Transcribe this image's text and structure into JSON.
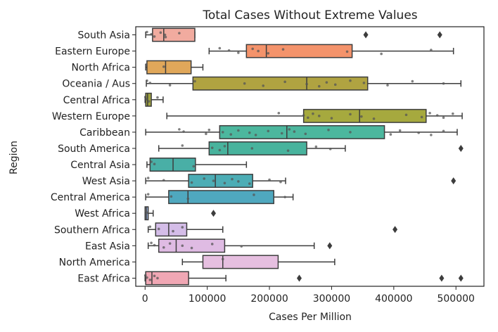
{
  "chart_data": {
    "type": "box",
    "title": "Total Cases Without Extreme Values",
    "xlabel": "Cases Per Million",
    "ylabel": "Region",
    "xlim": [
      -15000,
      545000
    ],
    "xticks": [
      0,
      100000,
      200000,
      300000,
      400000,
      500000
    ],
    "xtick_labels": [
      "0",
      "100000",
      "200000",
      "300000",
      "400000",
      "500000"
    ],
    "grid": false,
    "categories": [
      {
        "name": "South Asia",
        "color": "#f1ab9f",
        "whislo": 1000,
        "q1": 12000,
        "med": 30000,
        "q3": 80000,
        "whishi": 80000,
        "fliers": [
          355000,
          474000
        ],
        "points": [
          3000,
          10000,
          15000,
          25000,
          32000,
          33000,
          55000
        ]
      },
      {
        "name": "Eastern Europe",
        "color": "#f4936b",
        "whislo": 103000,
        "q1": 163000,
        "med": 195000,
        "q3": 333000,
        "whishi": 496000,
        "fliers": [],
        "points": [
          120000,
          135000,
          150000,
          173000,
          182000,
          198000,
          222000,
          325000,
          380000,
          460000
        ]
      },
      {
        "name": "North Africa",
        "color": "#e0a75a",
        "whislo": 1000,
        "q1": 3000,
        "med": 33000,
        "q3": 74000,
        "whishi": 93000,
        "fliers": [],
        "points": [
          2000,
          30000
        ]
      },
      {
        "name": "Oceania / Aus",
        "color": "#b0a341",
        "whislo": 2000,
        "q1": 77000,
        "med": 260000,
        "q3": 358000,
        "whishi": 508000,
        "fliers": [],
        "points": [
          3000,
          8000,
          40000,
          80000,
          160000,
          190000,
          225000,
          260000,
          280000,
          292000,
          306000,
          330000,
          352000,
          390000,
          430000,
          480000
        ]
      },
      {
        "name": "Central Africa",
        "color": "#a1a43f",
        "whislo": 0,
        "q1": 1000,
        "med": 4000,
        "q3": 10000,
        "whishi": 29000,
        "fliers": [],
        "points": [
          500,
          2000,
          6000,
          20000
        ]
      },
      {
        "name": "Western Europe",
        "color": "#a6a93e",
        "whislo": 35000,
        "q1": 255000,
        "med": 345000,
        "q3": 452000,
        "whishi": 510000,
        "fliers": [],
        "points": [
          215000,
          255000,
          262000,
          270000,
          280000,
          300000,
          330000,
          348000,
          368000,
          420000,
          445000,
          458000,
          470000,
          480000,
          495000
        ]
      },
      {
        "name": "Caribbean",
        "color": "#4cb79e",
        "whislo": 1000,
        "q1": 120000,
        "med": 228000,
        "q3": 385000,
        "whishi": 502000,
        "fliers": [],
        "points": [
          55000,
          62000,
          98000,
          103000,
          125000,
          138000,
          150000,
          168000,
          178000,
          198000,
          220000,
          232000,
          240000,
          258000,
          295000,
          330000,
          395000,
          410000,
          440000,
          460000,
          480000
        ]
      },
      {
        "name": "South America",
        "color": "#48b39d",
        "whislo": 22000,
        "q1": 103000,
        "med": 133000,
        "q3": 260000,
        "whishi": 322000,
        "fliers": [
          508000
        ],
        "points": [
          60000,
          108000,
          120000,
          128000,
          172000,
          230000,
          275000,
          298000
        ]
      },
      {
        "name": "Central Asia",
        "color": "#49afa6",
        "whislo": 3000,
        "q1": 8000,
        "med": 45000,
        "q3": 81000,
        "whishi": 163000,
        "fliers": [],
        "points": [
          10000,
          15000,
          78000
        ]
      },
      {
        "name": "West Asia",
        "color": "#4cadb5",
        "whislo": 1000,
        "q1": 70000,
        "med": 113000,
        "q3": 173000,
        "whishi": 226000,
        "fliers": [
          496000
        ],
        "points": [
          5000,
          30000,
          75000,
          95000,
          110000,
          128000,
          140000,
          150000,
          168000,
          200000,
          218000
        ]
      },
      {
        "name": "Central America",
        "color": "#4fa8bf",
        "whislo": 1000,
        "q1": 38000,
        "med": 69000,
        "q3": 207000,
        "whishi": 238000,
        "fliers": [],
        "points": [
          5000,
          42000,
          69000,
          175000,
          225000
        ]
      },
      {
        "name": "West Africa",
        "color": "#9bb4e0",
        "whislo": 0,
        "q1": 0,
        "med": 2000,
        "q3": 5000,
        "whishi": 13000,
        "fliers": [
          110000
        ],
        "points": [
          1000,
          3000
        ]
      },
      {
        "name": "Southern Africa",
        "color": "#d4bde8",
        "whislo": 5000,
        "q1": 17000,
        "med": 38000,
        "q3": 67000,
        "whishi": 125000,
        "fliers": [
          402000
        ],
        "points": [
          8000,
          22000,
          45000,
          60000
        ]
      },
      {
        "name": "East Asia",
        "color": "#dfbbe3",
        "whislo": 5000,
        "q1": 22000,
        "med": 50000,
        "q3": 128000,
        "whishi": 272000,
        "fliers": [
          297000
        ],
        "points": [
          10000,
          15000,
          30000,
          40000,
          60000,
          75000,
          108000,
          155000
        ]
      },
      {
        "name": "North America",
        "color": "#e6bfe0",
        "whislo": 60000,
        "q1": 93000,
        "med": 125000,
        "q3": 214000,
        "whishi": 305000,
        "fliers": [],
        "points": [
          125000
        ]
      },
      {
        "name": "East Africa",
        "color": "#f0a7b4",
        "whislo": 0,
        "q1": 1000,
        "med": 11000,
        "q3": 70000,
        "whishi": 130000,
        "fliers": [
          248000,
          477000,
          508000
        ],
        "points": [
          500,
          3000,
          8000,
          15000,
          20000
        ]
      }
    ]
  }
}
